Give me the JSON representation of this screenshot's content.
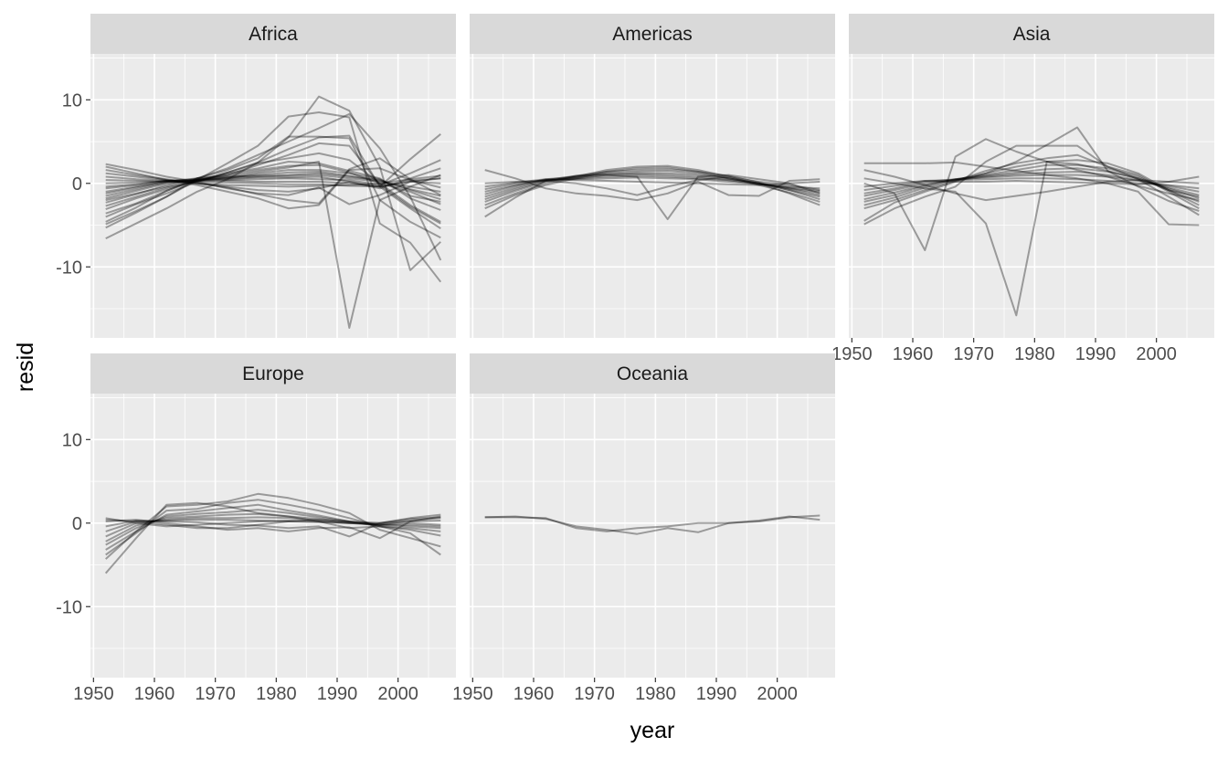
{
  "chart_data": {
    "type": "line",
    "facet_variable": "continent",
    "xlabel": "year",
    "ylabel": "resid",
    "xlim": [
      1949.5,
      2009.5
    ],
    "ylim": [
      -18.5,
      15.5
    ],
    "x_ticks": [
      1950,
      1960,
      1970,
      1980,
      1990,
      2000
    ],
    "y_ticks": [
      -10,
      0,
      10
    ],
    "grid": true,
    "legend": "none",
    "line_color": "#000000",
    "line_opacity": 0.35,
    "panel_background": "#ebebeb",
    "strip_background": "#d9d9d9",
    "years": [
      1952,
      1957,
      1962,
      1967,
      1972,
      1977,
      1982,
      1987,
      1992,
      1997,
      2002,
      2007
    ],
    "facets": [
      {
        "name": "Africa",
        "series": [
          {
            "values": [
              -6.6,
              -4.8,
              -3.0,
              -1.0,
              0.5,
              2.5,
              5.5,
              10.4,
              8.7,
              2.0,
              -10.4,
              -7.0
            ]
          },
          {
            "values": [
              -5.3,
              -3.5,
              -1.6,
              0.4,
              2.4,
              4.5,
              8.0,
              8.5,
              7.9,
              -4.8,
              -7.1,
              -11.8
            ]
          },
          {
            "values": [
              -4.9,
              -3.3,
              -1.6,
              0.6,
              1.8,
              3.4,
              5.0,
              6.6,
              8.3,
              4.2,
              -1.6,
              -9.2
            ]
          },
          {
            "values": [
              -4.6,
              -2.9,
              -0.9,
              0.6,
              1.6,
              3.0,
              5.6,
              5.6,
              5.4,
              -2.0,
              -4.6,
              -6.5
            ]
          },
          {
            "values": [
              -4.0,
              -2.5,
              -1.2,
              0.2,
              1.3,
              2.5,
              4.1,
              5.5,
              5.7,
              -0.4,
              -3.0,
              -5.4
            ]
          },
          {
            "values": [
              -3.6,
              -2.4,
              -0.9,
              0.4,
              1.0,
              2.2,
              3.4,
              4.8,
              4.5,
              -0.2,
              -2.8,
              -4.8
            ]
          },
          {
            "values": [
              -3.1,
              -1.8,
              -0.7,
              0.3,
              1.3,
              2.4,
              3.0,
              3.6,
              2.8,
              0.0,
              -2.6,
              -4.6
            ]
          },
          {
            "values": [
              -2.7,
              -1.6,
              -0.5,
              0.2,
              1.2,
              1.8,
              2.6,
              2.4,
              1.5,
              0.6,
              -1.8,
              -3.2
            ]
          },
          {
            "values": [
              -2.3,
              -1.3,
              -0.2,
              0.6,
              1.0,
              1.6,
              2.1,
              2.2,
              1.3,
              0.0,
              -1.0,
              -2.5
            ]
          },
          {
            "values": [
              -2.0,
              -1.2,
              -0.4,
              0.4,
              0.8,
              1.4,
              1.9,
              2.6,
              -17.3,
              -2.0,
              -0.4,
              1.0
            ]
          },
          {
            "values": [
              -1.8,
              -0.9,
              0.0,
              0.3,
              0.6,
              1.2,
              1.6,
              1.6,
              1.2,
              0.5,
              -1.5,
              -2.2
            ]
          },
          {
            "values": [
              -1.5,
              -0.7,
              0.1,
              0.4,
              0.7,
              1.0,
              1.3,
              1.4,
              0.9,
              0.3,
              -0.8,
              -1.9
            ]
          },
          {
            "values": [
              -1.2,
              -0.5,
              0.2,
              0.6,
              0.8,
              0.9,
              1.0,
              1.2,
              0.8,
              0.4,
              -0.7,
              -1.5
            ]
          },
          {
            "values": [
              -1.0,
              -0.4,
              0.2,
              0.4,
              0.6,
              0.8,
              0.9,
              1.0,
              0.6,
              0.2,
              -0.4,
              -1.0
            ]
          },
          {
            "values": [
              -0.6,
              -0.2,
              0.3,
              0.5,
              0.5,
              0.7,
              0.7,
              0.8,
              0.2,
              -0.6,
              0.6,
              1.8
            ]
          },
          {
            "values": [
              -0.4,
              -0.1,
              0.3,
              0.4,
              0.4,
              0.5,
              0.6,
              0.5,
              0.4,
              -0.2,
              1.2,
              2.8
            ]
          },
          {
            "values": [
              0.0,
              0.1,
              0.3,
              0.3,
              0.3,
              0.2,
              0.2,
              0.2,
              0.0,
              -0.4,
              2.9,
              5.9
            ]
          },
          {
            "values": [
              0.4,
              0.3,
              0.2,
              0.2,
              0.1,
              0.0,
              -0.1,
              -0.1,
              -0.3,
              -0.4,
              0.2,
              0.6
            ]
          },
          {
            "values": [
              0.8,
              0.5,
              0.3,
              0.0,
              -0.2,
              -0.3,
              -0.4,
              -0.3,
              -0.2,
              0.0,
              0.5,
              0.9
            ]
          },
          {
            "values": [
              1.2,
              0.8,
              0.4,
              0.0,
              -0.4,
              -0.8,
              -1.0,
              -0.6,
              0.2,
              -0.4,
              0.3,
              0.6
            ]
          },
          {
            "values": [
              1.6,
              1.0,
              0.5,
              0.0,
              -0.5,
              -1.3,
              -2.0,
              -2.4,
              1.7,
              3.0,
              0.5,
              -1.4
            ]
          },
          {
            "values": [
              2.0,
              1.2,
              0.4,
              -0.2,
              -1.0,
              -1.8,
              -3.0,
              -2.6,
              1.6,
              1.8,
              0.4,
              -0.5
            ]
          },
          {
            "values": [
              2.3,
              1.6,
              0.8,
              0.2,
              -0.6,
              -1.2,
              -1.4,
              -0.5,
              -2.5,
              -1.4,
              0.2,
              0.0
            ]
          }
        ]
      },
      {
        "name": "Americas",
        "series": [
          {
            "values": [
              -4.0,
              -1.7,
              0.3,
              0.6,
              1.0,
              0.8,
              -4.3,
              0.8,
              1.0,
              0.5,
              0.0,
              -1.2
            ]
          },
          {
            "values": [
              -3.0,
              -1.4,
              -0.2,
              0.6,
              1.4,
              1.8,
              1.9,
              1.4,
              0.6,
              0.0,
              -1.2,
              -2.6
            ]
          },
          {
            "values": [
              -2.6,
              -1.2,
              0.0,
              0.8,
              1.6,
              2.0,
              2.1,
              1.6,
              0.8,
              -0.2,
              -1.1,
              -2.2
            ]
          },
          {
            "values": [
              -2.2,
              -0.9,
              0.2,
              0.9,
              1.4,
              1.6,
              1.7,
              1.4,
              0.9,
              0.1,
              -0.8,
              -1.9
            ]
          },
          {
            "values": [
              -1.9,
              -0.7,
              0.3,
              0.8,
              1.2,
              1.4,
              1.5,
              1.2,
              0.6,
              0.0,
              -0.8,
              -1.6
            ]
          },
          {
            "values": [
              -1.6,
              -0.5,
              0.4,
              0.9,
              1.1,
              1.2,
              1.2,
              1.0,
              0.6,
              0.0,
              -0.6,
              -1.4
            ]
          },
          {
            "values": [
              -1.3,
              -0.3,
              0.5,
              0.8,
              1.0,
              1.1,
              1.0,
              0.8,
              0.4,
              -0.1,
              -0.6,
              -1.1
            ]
          },
          {
            "values": [
              -1.0,
              -0.2,
              0.4,
              0.6,
              0.8,
              0.9,
              0.8,
              0.6,
              0.4,
              0.0,
              -0.5,
              -0.9
            ]
          },
          {
            "values": [
              -0.7,
              0.0,
              0.4,
              0.5,
              0.6,
              0.7,
              0.6,
              0.5,
              0.2,
              -0.1,
              -0.4,
              -0.6
            ]
          },
          {
            "values": [
              -0.4,
              0.1,
              0.5,
              0.4,
              0.3,
              0.2,
              0.1,
              0.0,
              -0.1,
              -0.2,
              0.0,
              0.2
            ]
          },
          {
            "values": [
              0.0,
              0.2,
              0.3,
              0.0,
              -0.6,
              -1.4,
              -0.4,
              0.4,
              0.8,
              0.2,
              -0.2,
              -0.8
            ]
          },
          {
            "values": [
              1.6,
              0.6,
              -0.6,
              -1.2,
              -1.5,
              -2.0,
              -1.2,
              0.2,
              -1.4,
              -1.5,
              0.3,
              0.5
            ]
          }
        ]
      },
      {
        "name": "Asia",
        "series": [
          {
            "values": [
              -4.9,
              -3.0,
              -1.6,
              -0.4,
              2.6,
              4.5,
              4.5,
              4.5,
              2.0,
              0.5,
              -1.6,
              -3.8
            ]
          },
          {
            "values": [
              -4.5,
              -2.3,
              -1.0,
              0.2,
              1.2,
              2.6,
              4.6,
              6.7,
              1.5,
              -0.4,
              -2.1,
              -3.3
            ]
          },
          {
            "values": [
              -3.0,
              -2.0,
              -0.8,
              0.3,
              1.5,
              2.4,
              3.0,
              3.4,
              2.0,
              1.0,
              -1.0,
              -3.0
            ]
          },
          {
            "values": [
              -2.6,
              -1.7,
              -0.5,
              0.4,
              1.2,
              2.0,
              2.6,
              2.8,
              2.4,
              1.2,
              -0.8,
              -2.6
            ]
          },
          {
            "values": [
              -2.2,
              -1.4,
              -0.3,
              0.5,
              1.0,
              1.6,
              2.2,
              2.2,
              1.8,
              0.8,
              -0.8,
              -2.2
            ]
          },
          {
            "values": [
              -1.9,
              -1.1,
              -0.2,
              0.5,
              0.9,
              1.3,
              1.7,
              1.8,
              1.4,
              0.6,
              -0.6,
              -1.8
            ]
          },
          {
            "values": [
              -1.5,
              -0.8,
              0.0,
              0.4,
              0.8,
              1.1,
              1.3,
              1.4,
              1.0,
              0.4,
              -0.5,
              -1.4
            ]
          },
          {
            "values": [
              -1.2,
              -0.6,
              0.2,
              0.5,
              0.7,
              0.9,
              1.0,
              1.0,
              0.8,
              0.3,
              -0.3,
              -1.0
            ]
          },
          {
            "values": [
              -0.8,
              -0.3,
              0.3,
              0.4,
              0.5,
              0.6,
              0.6,
              0.5,
              0.3,
              0.0,
              -0.2,
              -0.6
            ]
          },
          {
            "values": [
              -0.4,
              0.0,
              0.3,
              0.2,
              0.2,
              0.3,
              0.2,
              0.1,
              0.0,
              -0.1,
              0.2,
              0.8
            ]
          },
          {
            "values": [
              0.0,
              -1.2,
              -8.0,
              3.2,
              5.3,
              3.8,
              2.6,
              1.6,
              0.8,
              -0.3,
              -1.2,
              -2.0
            ]
          },
          {
            "values": [
              0.6,
              0.0,
              -0.6,
              -1.0,
              -4.8,
              -15.8,
              2.6,
              2.3,
              1.5,
              0.6,
              -0.8,
              -1.6
            ]
          },
          {
            "values": [
              1.6,
              0.8,
              -0.2,
              -1.2,
              -2.0,
              -1.5,
              -1.0,
              -0.4,
              0.2,
              0.4,
              0.2,
              0.0
            ]
          },
          {
            "values": [
              2.4,
              2.4,
              2.4,
              2.5,
              2.0,
              1.5,
              1.0,
              0.6,
              0.0,
              -1.0,
              -4.9,
              -5.0
            ]
          }
        ]
      },
      {
        "name": "Europe",
        "series": [
          {
            "values": [
              -6.0,
              -1.8,
              2.2,
              2.4,
              2.0,
              1.2,
              0.8,
              0.2,
              -0.6,
              -0.4,
              -1.2,
              -3.8
            ]
          },
          {
            "values": [
              -4.3,
              -1.0,
              2.0,
              2.2,
              2.6,
              3.5,
              3.0,
              2.2,
              1.2,
              -0.8,
              -1.8,
              -2.8
            ]
          },
          {
            "values": [
              -3.8,
              -1.2,
              1.5,
              1.7,
              2.4,
              2.8,
              2.2,
              1.5,
              0.6,
              -0.4,
              -0.8,
              -1.5
            ]
          },
          {
            "values": [
              -3.2,
              -1.0,
              1.0,
              1.4,
              1.8,
              2.2,
              1.5,
              0.9,
              0.2,
              -0.4,
              -0.6,
              -1.0
            ]
          },
          {
            "values": [
              -2.6,
              -0.6,
              0.8,
              1.1,
              1.3,
              1.6,
              1.2,
              0.7,
              0.2,
              -0.2,
              -0.4,
              -0.6
            ]
          },
          {
            "values": [
              -2.2,
              -0.3,
              0.6,
              0.8,
              1.0,
              1.1,
              0.8,
              0.5,
              0.1,
              -0.2,
              -0.2,
              -0.4
            ]
          },
          {
            "values": [
              -1.6,
              0.0,
              0.4,
              0.6,
              0.6,
              0.7,
              0.6,
              0.3,
              0.0,
              -0.2,
              0.0,
              -0.2
            ]
          },
          {
            "values": [
              -1.0,
              0.2,
              0.3,
              0.4,
              0.4,
              0.3,
              0.2,
              0.1,
              0.0,
              0.0,
              0.2,
              0.3
            ]
          },
          {
            "values": [
              -0.4,
              0.3,
              0.2,
              0.1,
              -0.2,
              -0.3,
              -0.6,
              -0.4,
              -1.6,
              0.0,
              0.5,
              0.7
            ]
          },
          {
            "values": [
              0.2,
              0.4,
              0.0,
              -0.4,
              -0.8,
              -0.6,
              -1.0,
              -0.6,
              -0.5,
              -1.8,
              0.2,
              0.8
            ]
          },
          {
            "values": [
              0.4,
              0.2,
              -0.2,
              -0.6,
              -0.6,
              -0.2,
              0.2,
              0.4,
              0.2,
              0.0,
              0.6,
              1.0
            ]
          },
          {
            "values": [
              0.6,
              0.0,
              -0.4,
              -0.2,
              0.0,
              0.2,
              0.3,
              0.2,
              0.0,
              -0.2,
              0.3,
              0.6
            ]
          }
        ]
      },
      {
        "name": "Oceania",
        "series": [
          {
            "values": [
              0.7,
              0.8,
              0.5,
              -0.4,
              -0.8,
              -1.3,
              -0.6,
              -1.1,
              0.0,
              0.2,
              0.7,
              0.9
            ]
          },
          {
            "values": [
              0.7,
              0.7,
              0.6,
              -0.6,
              -1.0,
              -0.6,
              -0.4,
              0.0,
              0.0,
              0.3,
              0.8,
              0.4
            ]
          }
        ]
      }
    ]
  }
}
